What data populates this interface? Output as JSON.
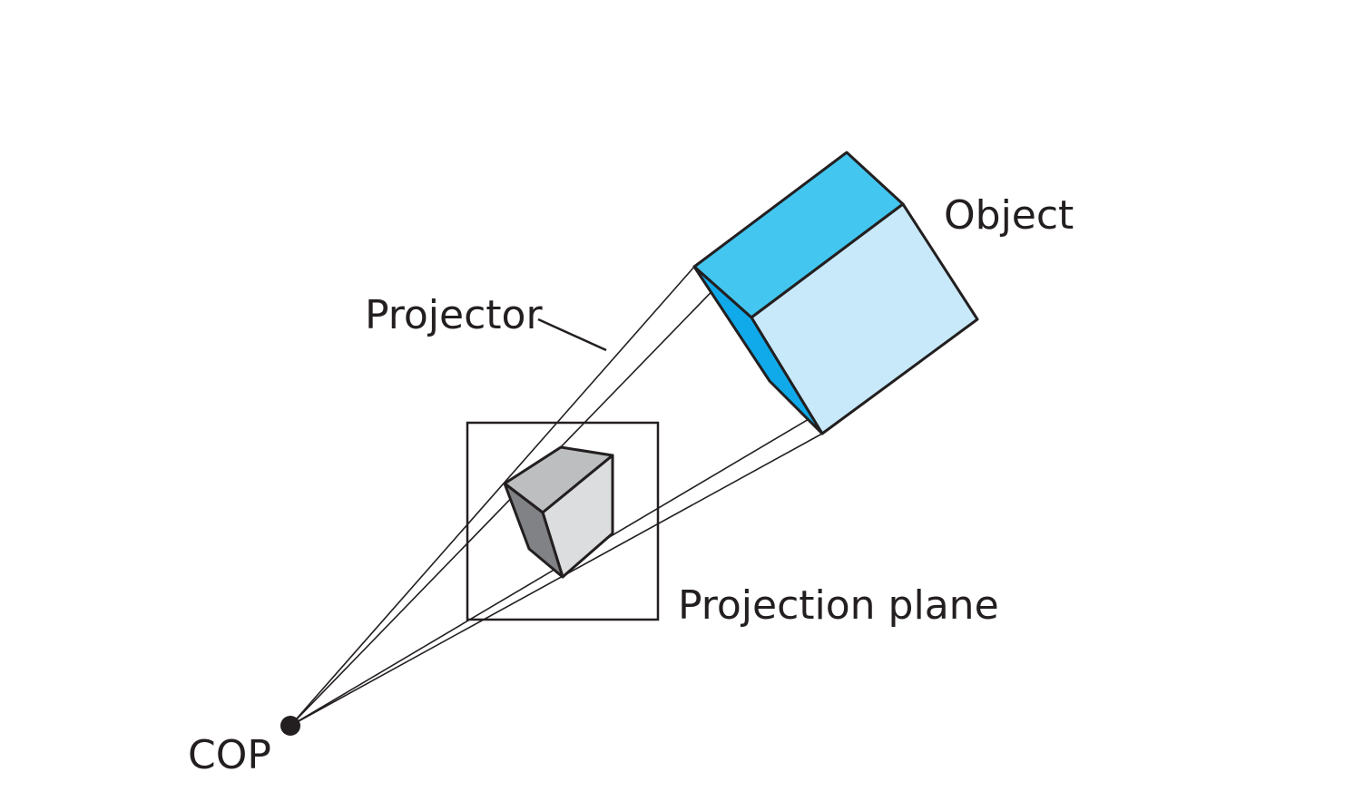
{
  "labels": {
    "object": "Object",
    "projector": "Projector",
    "projection_plane": "Projection plane",
    "cop": "COP"
  },
  "colors": {
    "object_top": "#43c6ef",
    "object_front": "#c8e9f9",
    "object_side": "#10aaea",
    "image_top": "#bcbec0",
    "image_front": "#dcddde",
    "image_side": "#808285",
    "stroke": "#231f20"
  }
}
